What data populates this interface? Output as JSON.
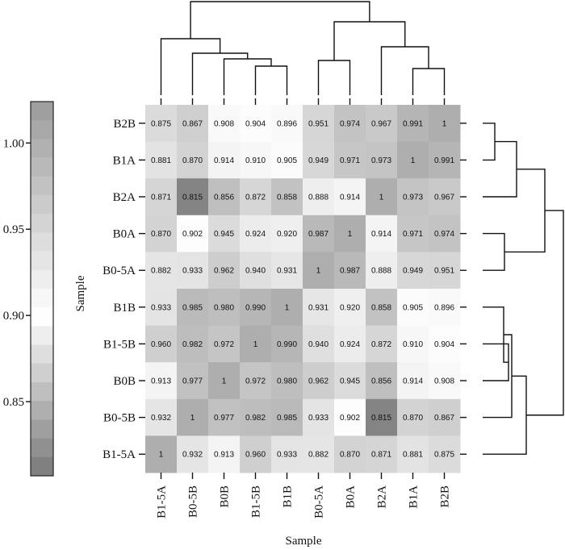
{
  "chart_data": {
    "type": "heatmap",
    "title": "",
    "xlabel": "Sample",
    "ylabel": "Sample",
    "x_categories": [
      "B1-5A",
      "B0-5B",
      "B0B",
      "B1-5B",
      "B1B",
      "B0-5A",
      "B0A",
      "B2A",
      "B1A",
      "B2B"
    ],
    "y_categories": [
      "B2B",
      "B1A",
      "B2A",
      "B0A",
      "B0-5A",
      "B1B",
      "B1-5B",
      "B0B",
      "B0-5B",
      "B1-5A"
    ],
    "values": [
      [
        "0.875",
        "0.867",
        "0.908",
        "0.904",
        "0.896",
        "0.951",
        "0.974",
        "0.967",
        "0.991",
        "1"
      ],
      [
        "0.881",
        "0.870",
        "0.914",
        "0.910",
        "0.905",
        "0.949",
        "0.971",
        "0.973",
        "1",
        "0.991"
      ],
      [
        "0.871",
        "0.815",
        "0.856",
        "0.872",
        "0.858",
        "0.888",
        "0.914",
        "1",
        "0.973",
        "0.967"
      ],
      [
        "0.870",
        "0.902",
        "0.945",
        "0.924",
        "0.920",
        "0.987",
        "1",
        "0.914",
        "0.971",
        "0.974"
      ],
      [
        "0.882",
        "0.933",
        "0.962",
        "0.940",
        "0.931",
        "1",
        "0.987",
        "0.888",
        "0.949",
        "0.951"
      ],
      [
        "0.933",
        "0.985",
        "0.980",
        "0.990",
        "1",
        "0.931",
        "0.920",
        "0.858",
        "0.905",
        "0.896"
      ],
      [
        "0.960",
        "0.982",
        "0.972",
        "1",
        "0.990",
        "0.940",
        "0.924",
        "0.872",
        "0.910",
        "0.904"
      ],
      [
        "0.913",
        "0.977",
        "1",
        "0.972",
        "0.980",
        "0.962",
        "0.945",
        "0.856",
        "0.914",
        "0.908"
      ],
      [
        "0.932",
        "1",
        "0.977",
        "0.982",
        "0.985",
        "0.933",
        "0.902",
        "0.815",
        "0.870",
        "0.867"
      ],
      [
        "1",
        "0.932",
        "0.913",
        "0.960",
        "0.933",
        "0.882",
        "0.870",
        "0.871",
        "0.881",
        "0.875"
      ]
    ],
    "colorbar": {
      "min": 0.8,
      "max": 1.02,
      "center": 0.9,
      "ticks": [
        "0.85",
        "0.90",
        "0.95",
        "1.00"
      ],
      "low_color": "#6e6e6e",
      "mid_color": "#ffffff",
      "high_color": "#9e9e9e"
    },
    "dendrogram_top": "x_categories",
    "dendrogram_right": "y_categories"
  }
}
